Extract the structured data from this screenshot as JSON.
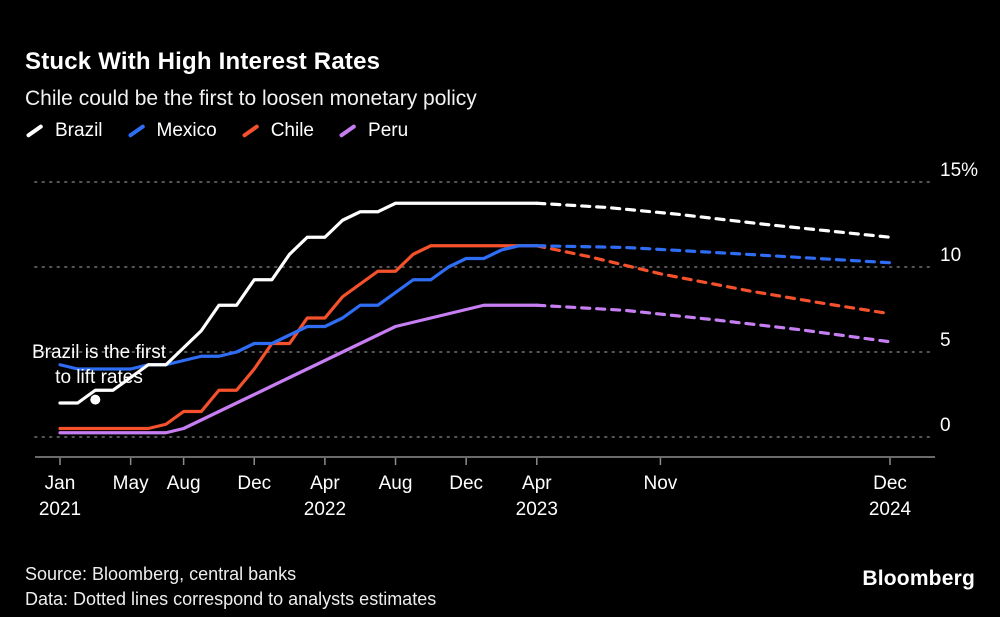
{
  "header": {
    "title": "Stuck With High Interest Rates",
    "subtitle": "Chile could be the first to loosen monetary policy"
  },
  "legend": {
    "items": [
      {
        "label": "Brazil",
        "color": "#ffffff"
      },
      {
        "label": "Mexico",
        "color": "#2e6df4"
      },
      {
        "label": "Chile",
        "color": "#f4512c"
      },
      {
        "label": "Peru",
        "color": "#c77ef2"
      }
    ]
  },
  "chart_data": {
    "type": "line",
    "title": "Stuck With High Interest Rates",
    "subtitle": "Chile could be the first to loosen monetary policy",
    "x_unit": "months from Jan 2021 to Dec 2024",
    "ylim": [
      0,
      15
    ],
    "grid": "dotted-horizontal",
    "legend_position": "top-left",
    "note": "Dotted lines correspond to analysts estimates",
    "y_ticks": [
      {
        "value": 15,
        "label": "15%"
      },
      {
        "value": 10,
        "label": "10"
      },
      {
        "value": 5,
        "label": "5"
      },
      {
        "value": 0,
        "label": "0"
      }
    ],
    "x_ticks": [
      {
        "month": 0,
        "label": "Jan",
        "year": "2021"
      },
      {
        "month": 4,
        "label": "May"
      },
      {
        "month": 7,
        "label": "Aug"
      },
      {
        "month": 11,
        "label": "Dec"
      },
      {
        "month": 15,
        "label": "Apr",
        "year": "2022"
      },
      {
        "month": 19,
        "label": "Aug"
      },
      {
        "month": 23,
        "label": "Dec"
      },
      {
        "month": 27,
        "label": "Apr",
        "year": "2023"
      },
      {
        "month": 34,
        "label": "Nov"
      },
      {
        "month": 47,
        "label": "Dec",
        "year": "2024"
      }
    ],
    "series": [
      {
        "name": "Chile",
        "color": "#f4512c",
        "values": [
          0.5,
          0.5,
          0.5,
          0.5,
          0.5,
          0.5,
          0.75,
          1.5,
          1.5,
          2.75,
          2.75,
          4,
          5.5,
          5.5,
          7,
          7,
          8.25,
          9,
          9.75,
          9.75,
          10.75,
          11.25,
          11.25,
          11.25,
          11.25,
          11.25,
          11.25,
          11.25
        ],
        "dashed": [
          [
            27,
            11.25
          ],
          [
            30,
            10.6
          ],
          [
            34,
            9.6
          ],
          [
            39,
            8.6
          ],
          [
            43,
            7.9
          ],
          [
            47,
            7.25
          ]
        ]
      },
      {
        "name": "Peru",
        "color": "#c77ef2",
        "values": [
          0.25,
          0.25,
          0.25,
          0.25,
          0.25,
          0.25,
          0.25,
          0.5,
          1,
          1.5,
          2,
          2.5,
          3,
          3.5,
          4,
          4.5,
          5,
          5.5,
          6,
          6.5,
          6.75,
          7,
          7.25,
          7.5,
          7.75,
          7.75,
          7.75,
          7.75
        ],
        "dashed": [
          [
            27,
            7.75
          ],
          [
            32,
            7.45
          ],
          [
            37,
            6.9
          ],
          [
            42,
            6.3
          ],
          [
            47,
            5.6
          ]
        ]
      },
      {
        "name": "Mexico",
        "color": "#2e6df4",
        "values": [
          4.25,
          4,
          4,
          4,
          4,
          4.25,
          4.25,
          4.5,
          4.75,
          4.75,
          5,
          5.5,
          5.5,
          6,
          6.5,
          6.5,
          7,
          7.75,
          7.75,
          8.5,
          9.25,
          9.25,
          10,
          10.5,
          10.5,
          11,
          11.25,
          11.25
        ],
        "dashed": [
          [
            27,
            11.25
          ],
          [
            32,
            11.15
          ],
          [
            38,
            10.8
          ],
          [
            47,
            10.25
          ]
        ]
      },
      {
        "name": "Brazil",
        "color": "#ffffff",
        "values": [
          2,
          2,
          2.75,
          2.75,
          3.5,
          4.25,
          4.25,
          5.25,
          6.25,
          7.75,
          7.75,
          9.25,
          9.25,
          10.75,
          11.75,
          11.75,
          12.75,
          13.25,
          13.25,
          13.75,
          13.75,
          13.75,
          13.75,
          13.75,
          13.75,
          13.75,
          13.75,
          13.75
        ],
        "dashed": [
          [
            27,
            13.75
          ],
          [
            31,
            13.5
          ],
          [
            35,
            13.1
          ],
          [
            40,
            12.5
          ],
          [
            47,
            11.75
          ]
        ]
      }
    ],
    "annotation": {
      "text_line1": "Brazil is the first",
      "text_line2": "to lift rates",
      "point_month": 2,
      "point_value": 2.2
    }
  },
  "footer": {
    "source": "Source: Bloomberg, central banks",
    "note": "Data: Dotted lines correspond to analysts estimates",
    "brand": "Bloomberg"
  }
}
